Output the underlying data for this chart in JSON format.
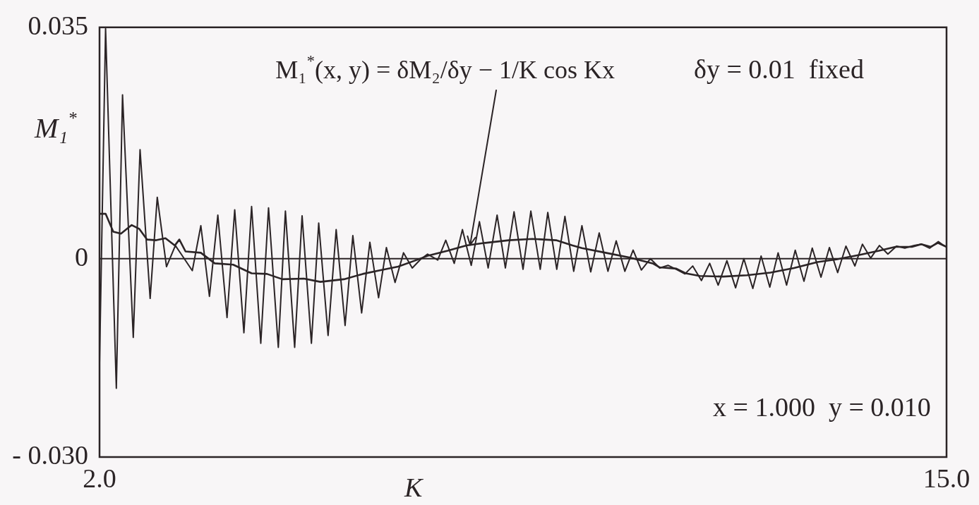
{
  "chart_data": {
    "type": "line",
    "xlabel": "K",
    "ylabel": "M₁$^{*}$",
    "xlim": [
      2,
      15
    ],
    "ylim": [
      -0.03,
      0.035
    ],
    "xticks": [
      {
        "value": 2,
        "label": "2.0"
      },
      {
        "value": 15,
        "label": "15.0"
      }
    ],
    "yticks": [
      {
        "value": -0.03,
        "label": "- 0.030"
      },
      0,
      0.035
    ],
    "legend": false,
    "marker": "none",
    "line_style": "solid",
    "ref_lines": [
      {
        "axis": "y",
        "value": 0,
        "color": "#2b2426"
      }
    ],
    "annotations": [
      {
        "text": "M₁$^{*}$(x, y) = δM₂/δy − 1/K cos Kx",
        "x": 7.69,
        "y": 0.0021
      },
      "δy = 0.01  fixed",
      "x = 1.000  y = 0.010"
    ],
    "series": [
      {
        "color": "#2b2426",
        "x": [
          2.0,
          2.093,
          2.258,
          2.353,
          2.518,
          2.622,
          2.777,
          2.886,
          3.028,
          3.164,
          3.424,
          3.555,
          3.687,
          3.816,
          3.957,
          4.075,
          4.216,
          4.334,
          4.475,
          4.594,
          4.744,
          4.853,
          4.995,
          5.109,
          5.252,
          5.364,
          5.508,
          5.632,
          5.769,
          5.888,
          6.023,
          6.149,
          6.283,
          6.403,
          6.536,
          6.666,
          6.8,
          6.927,
          7.035,
          7.191,
          7.314,
          7.444,
          7.57,
          7.705,
          7.831,
          7.965,
          8.102,
          8.229,
          8.362,
          8.5,
          8.62,
          8.764,
          8.88,
          9.018,
          9.143,
          9.278,
          9.404,
          9.539,
          9.669,
          9.803,
          9.93,
          10.063,
          10.19,
          10.316,
          10.454,
          10.598,
          10.725,
          10.852,
          10.985,
          11.105,
          11.238,
          11.365,
          11.495,
          11.629,
          11.763,
          11.889,
          12.027,
          12.154,
          12.288,
          12.415,
          12.545,
          12.678,
          12.812,
          12.939,
          13.073,
          13.202,
          13.329,
          13.456,
          13.593,
          13.709,
          13.836,
          13.97,
          14.1,
          14.233,
          14.36,
          14.505,
          14.613,
          14.74,
          14.874,
          14.957,
          15.0
        ],
        "values": [
          -0.0158,
          0.0348,
          -0.0196,
          0.0248,
          -0.0119,
          0.0165,
          -0.006,
          0.0093,
          -0.0012,
          0.002,
          -0.0018,
          0.005,
          -0.0057,
          0.0066,
          -0.0089,
          0.0074,
          -0.0112,
          0.0079,
          -0.0128,
          0.0077,
          -0.0134,
          0.0072,
          -0.0134,
          0.0065,
          -0.0128,
          0.0054,
          -0.0116,
          0.0044,
          -0.0101,
          0.0035,
          -0.0082,
          0.0025,
          -0.0059,
          0.0017,
          -0.0036,
          0.0009,
          -0.0014,
          -0.0001,
          0.0007,
          -0.0002,
          0.0028,
          -0.0007,
          0.0044,
          -0.001,
          0.0056,
          -0.0014,
          0.0066,
          -0.0014,
          0.0071,
          -0.0016,
          0.0072,
          -0.0016,
          0.007,
          -0.0016,
          0.0064,
          -0.0019,
          0.005,
          -0.002,
          0.0039,
          -0.0019,
          0.0027,
          -0.0019,
          0.0013,
          -0.0017,
          0.0,
          -0.0014,
          -0.001,
          -0.0016,
          -0.0023,
          -0.0011,
          -0.0033,
          -0.0007,
          -0.004,
          -0.0003,
          -0.0044,
          0.0,
          -0.0045,
          0.0004,
          -0.0043,
          0.0009,
          -0.004,
          0.0013,
          -0.0034,
          0.0016,
          -0.0028,
          0.0017,
          -0.0021,
          0.0019,
          -0.0011,
          0.0022,
          0.0001,
          0.002,
          0.0007,
          0.0019,
          0.0016,
          0.002,
          0.0022,
          0.0016,
          0.0026,
          0.002,
          0.0018
        ]
      },
      {
        "color": "#2b2426",
        "x": [
          2.0,
          2.093,
          2.211,
          2.329,
          2.494,
          2.612,
          2.73,
          2.871,
          3.012,
          3.155,
          3.225,
          3.32,
          3.555,
          3.768,
          4.051,
          4.334,
          4.57,
          4.806,
          5.136,
          5.389,
          5.752,
          6.04,
          6.33,
          6.583,
          6.837,
          7.054,
          7.342,
          7.632,
          7.922,
          8.283,
          8.645,
          9.007,
          9.26,
          9.404,
          9.767,
          10.128,
          10.489,
          10.598,
          10.852,
          10.996,
          11.213,
          11.575,
          11.937,
          12.298,
          12.66,
          13.022,
          13.311,
          13.673,
          13.962,
          14.216,
          14.469,
          14.613,
          14.758,
          14.867,
          15.0
        ],
        "values": [
          0.0068,
          0.0068,
          0.0041,
          0.0038,
          0.0051,
          0.0045,
          0.0029,
          0.0028,
          0.0031,
          0.002,
          0.0029,
          0.0011,
          0.0009,
          -0.0007,
          -0.0009,
          -0.0022,
          -0.0023,
          -0.0031,
          -0.003,
          -0.0035,
          -0.0031,
          -0.0023,
          -0.0017,
          -0.0012,
          -0.0003,
          0.0005,
          0.0012,
          0.002,
          0.0024,
          0.0028,
          0.003,
          0.0028,
          0.002,
          0.0016,
          0.0009,
          0.0002,
          -0.0007,
          -0.0013,
          -0.0015,
          -0.0022,
          -0.0026,
          -0.0027,
          -0.0025,
          -0.0021,
          -0.0014,
          -0.0005,
          -0.0001,
          0.0006,
          0.0012,
          0.0018,
          0.0018,
          0.0022,
          0.0018,
          0.0024,
          0.0018
        ]
      }
    ]
  }
}
